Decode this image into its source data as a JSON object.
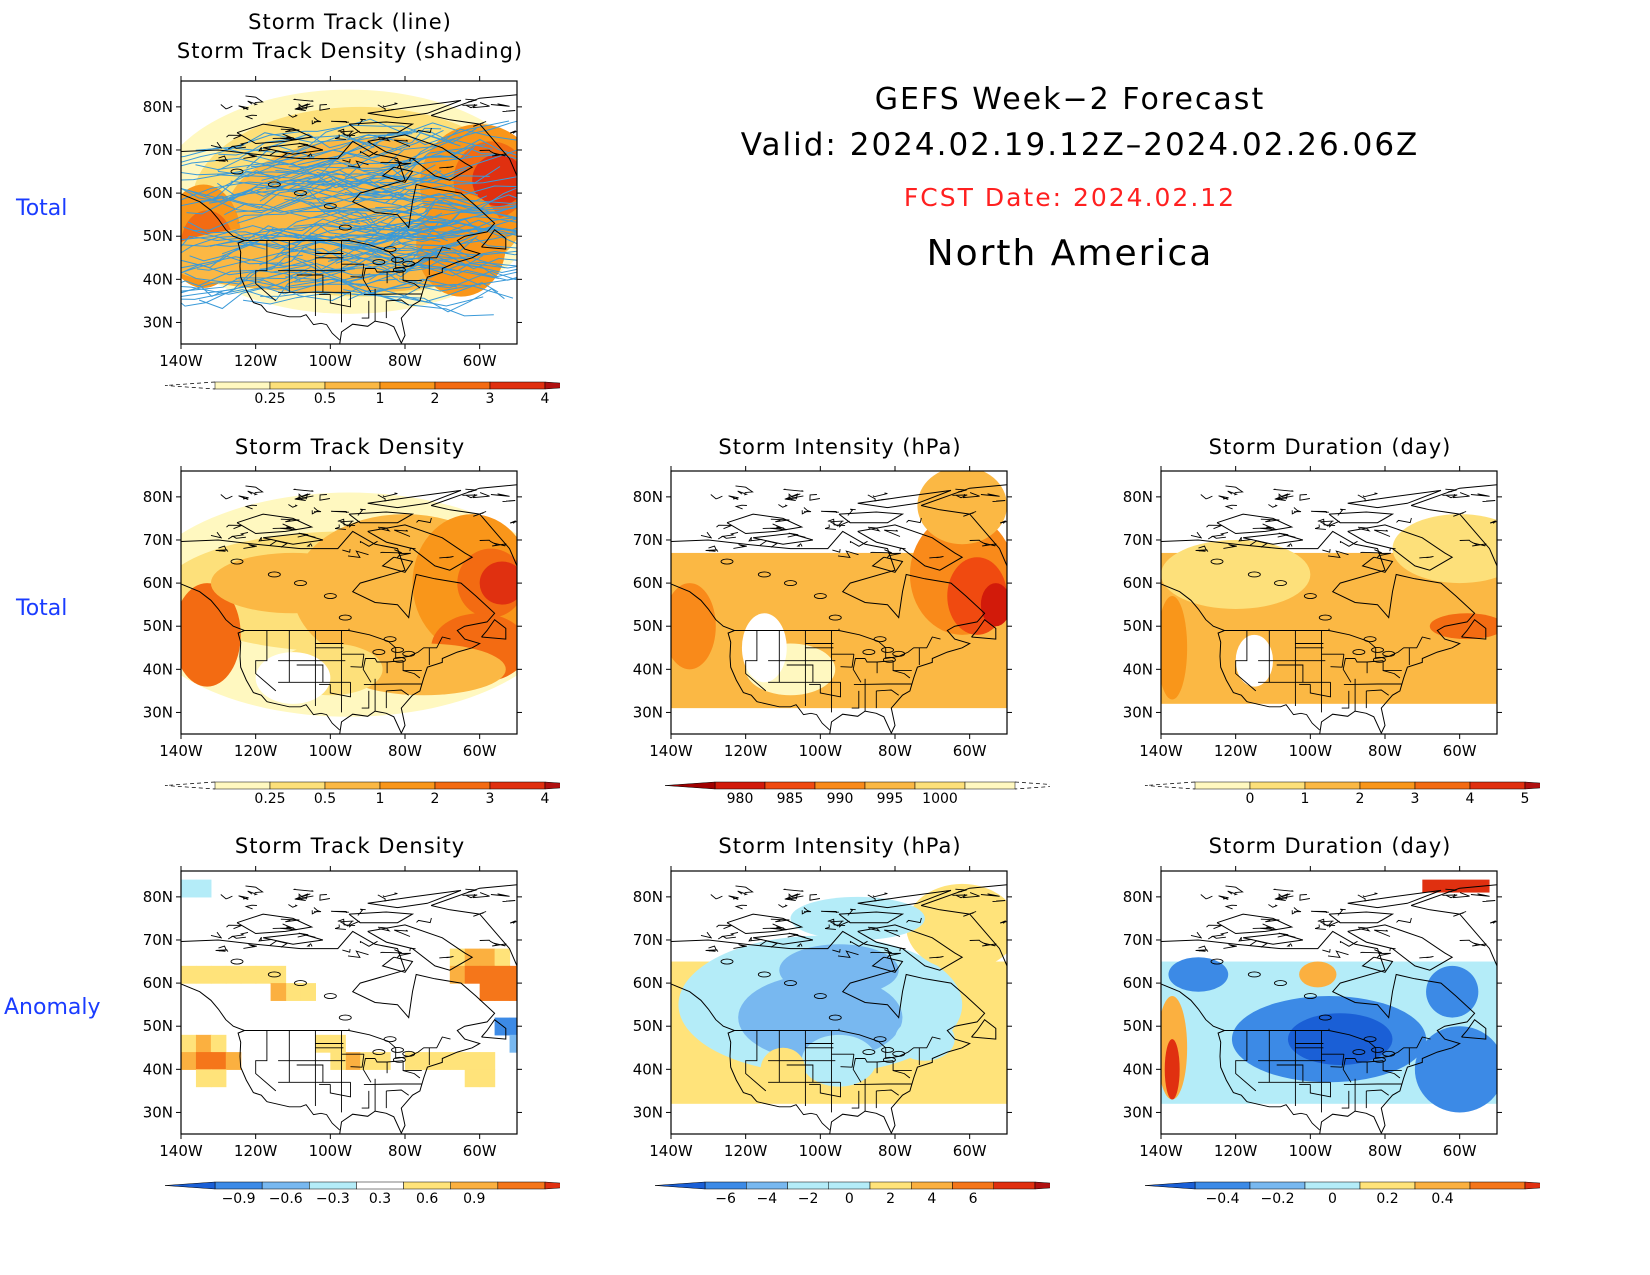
{
  "header": {
    "line1": "GEFS Week−2 Forecast",
    "line2": "Valid: 2024.02.19.12Z–2024.02.26.06Z",
    "fcst": "FCST Date: 2024.02.12",
    "region": "North America",
    "fcst_color": "#ff2020"
  },
  "row_labels": {
    "top": "Total",
    "middle": "Total",
    "bottom": "Anomaly"
  },
  "axes": {
    "lat_ticks": [
      "80N",
      "70N",
      "60N",
      "50N",
      "40N",
      "30N"
    ],
    "lon_ticks": [
      "140W",
      "120W",
      "100W",
      "80W",
      "60W"
    ]
  },
  "panels": [
    {
      "id": "track",
      "title_lines": [
        "Storm Track (line)",
        "Storm Track Density (shading)"
      ],
      "colorbar": {
        "labels": [
          "0.25",
          "0.5",
          "1",
          "2",
          "3",
          "4"
        ]
      }
    },
    {
      "id": "density-total",
      "title_lines": [
        "Storm Track Density"
      ],
      "colorbar": {
        "labels": [
          "0.25",
          "0.5",
          "1",
          "2",
          "3",
          "4"
        ]
      }
    },
    {
      "id": "intensity-total",
      "title_lines": [
        "Storm Intensity (hPa)"
      ],
      "colorbar": {
        "labels": [
          "980",
          "985",
          "990",
          "995",
          "1000"
        ]
      }
    },
    {
      "id": "duration-total",
      "title_lines": [
        "Storm Duration (day)"
      ],
      "colorbar": {
        "labels": [
          "0",
          "1",
          "2",
          "3",
          "4",
          "5"
        ]
      }
    },
    {
      "id": "density-anom",
      "title_lines": [
        "Storm Track Density"
      ],
      "colorbar": {
        "labels": [
          "−0.9",
          "−0.6",
          "−0.3",
          "0.3",
          "0.6",
          "0.9"
        ]
      }
    },
    {
      "id": "intensity-anom",
      "title_lines": [
        "Storm Intensity (hPa)"
      ],
      "colorbar": {
        "labels": [
          "−6",
          "−4",
          "−2",
          "0",
          "2",
          "4",
          "6"
        ]
      }
    },
    {
      "id": "duration-anom",
      "title_lines": [
        "Storm Duration (day)"
      ],
      "colorbar": {
        "labels": [
          "−0.4",
          "−0.2",
          "0",
          "0.2",
          "0.4"
        ]
      }
    }
  ],
  "palettes": {
    "warm": [
      "#fff8c0",
      "#fde07a",
      "#fbb844",
      "#f9961a",
      "#f36b12",
      "#e03010",
      "#b01010"
    ],
    "intensity": [
      "#a00000",
      "#d21a0a",
      "#f04a10",
      "#f98a1a",
      "#fbb844",
      "#fde07a",
      "#fff8c0"
    ],
    "diverging": [
      "#1a5fd6",
      "#3c8ae6",
      "#78b8f0",
      "#b4ecf8",
      "#ffe37a",
      "#fbb040",
      "#f5761a",
      "#e03010"
    ],
    "track_line": "#3a9ad9"
  }
}
